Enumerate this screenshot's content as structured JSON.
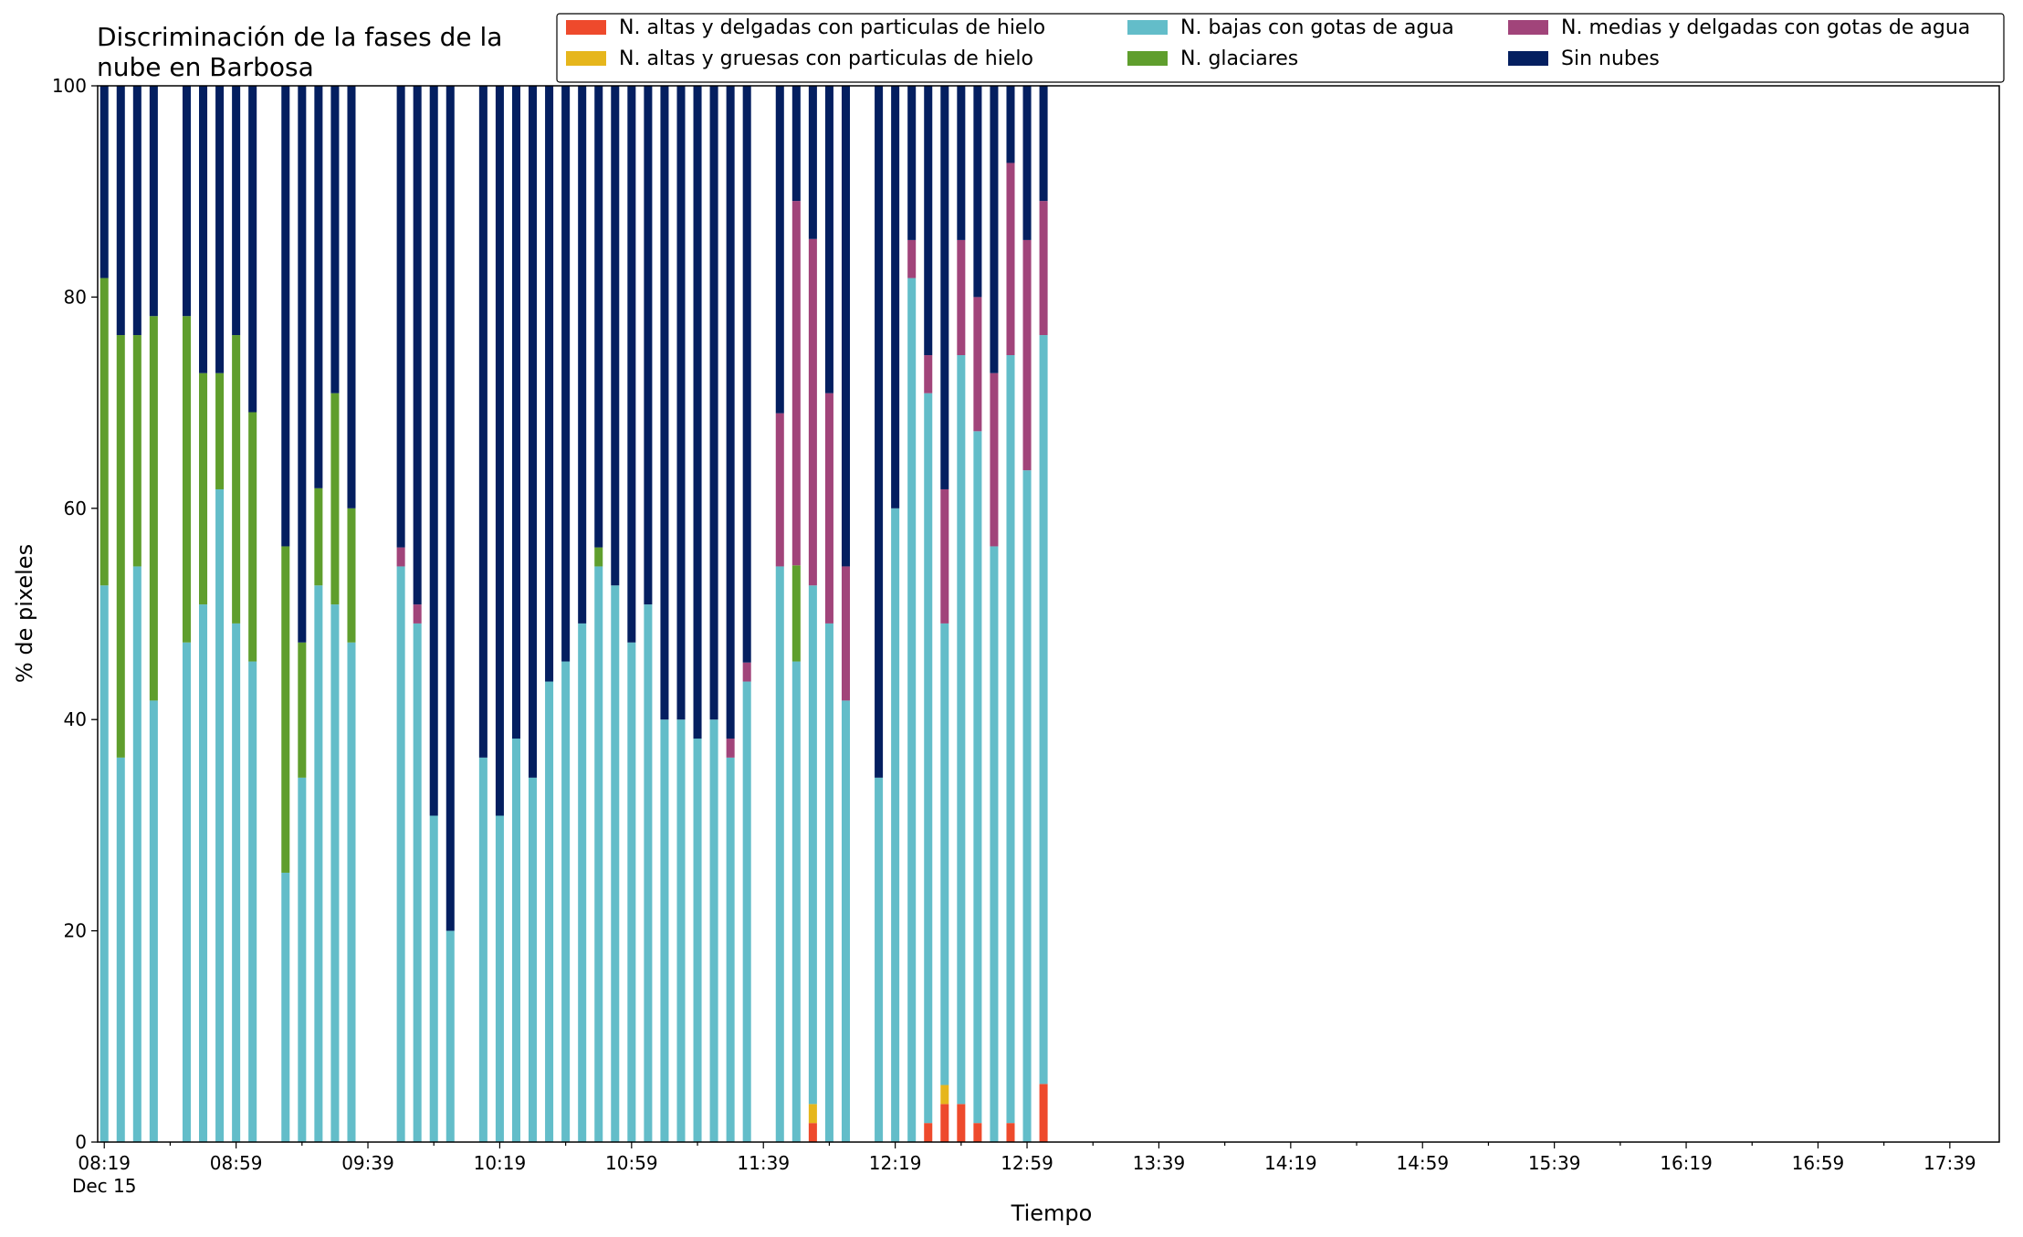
{
  "chart_data": {
    "type": "bar",
    "stacked": true,
    "title_lines": [
      "Discriminación de la fases de la",
      "nube en Barbosa"
    ],
    "xlabel": "Tiempo",
    "ylabel": "% de pixeles",
    "ylim": [
      0,
      100
    ],
    "yticks": [
      0,
      20,
      40,
      60,
      80,
      100
    ],
    "x_step_minutes": 5,
    "x_tick_labels": [
      "08:19",
      "08:59",
      "09:39",
      "10:19",
      "10:59",
      "11:39",
      "12:19",
      "12:59",
      "13:39",
      "14:19",
      "14:59",
      "15:39",
      "16:19",
      "16:59",
      "17:39"
    ],
    "x_date_label": "Dec 15",
    "x_range": [
      "08:17",
      "17:54"
    ],
    "legend_position": "top-right",
    "legend_columns": 3,
    "series": [
      {
        "name": "N. altas y delgadas con particulas de hielo",
        "color": "#ee4a2c"
      },
      {
        "name": "N. altas y gruesas con particulas de hielo",
        "color": "#e6b61c"
      },
      {
        "name": "N. bajas con gotas de agua",
        "color": "#63bdc9"
      },
      {
        "name": "N. glaciares",
        "color": "#5f9e2d"
      },
      {
        "name": "N. medias y delgadas con gotas de agua",
        "color": "#a1447a"
      },
      {
        "name": "Sin nubes",
        "color": "#041f60"
      }
    ],
    "bars": [
      {
        "time": "08:19",
        "values": [
          0,
          0,
          52.7,
          29.1,
          0,
          18.2
        ]
      },
      {
        "time": "08:24",
        "values": [
          0,
          0,
          36.4,
          40.0,
          0,
          23.6
        ]
      },
      {
        "time": "08:29",
        "values": [
          0,
          0,
          54.5,
          21.9,
          0,
          23.6
        ]
      },
      {
        "time": "08:34",
        "values": [
          0,
          0,
          41.8,
          36.4,
          0,
          21.8
        ]
      },
      {
        "time": "08:44",
        "values": [
          0,
          0,
          47.3,
          30.9,
          0,
          21.8
        ]
      },
      {
        "time": "08:49",
        "values": [
          0,
          0,
          50.9,
          21.9,
          0,
          27.2
        ]
      },
      {
        "time": "08:54",
        "values": [
          0,
          0,
          61.8,
          11.0,
          0,
          27.2
        ]
      },
      {
        "time": "08:59",
        "values": [
          0,
          0,
          49.1,
          27.3,
          0,
          23.6
        ]
      },
      {
        "time": "09:04",
        "values": [
          0,
          0,
          45.5,
          23.6,
          0,
          30.9
        ]
      },
      {
        "time": "09:14",
        "values": [
          0,
          0,
          25.5,
          30.9,
          0,
          43.6
        ]
      },
      {
        "time": "09:19",
        "values": [
          0,
          0,
          34.5,
          12.8,
          0,
          52.7
        ]
      },
      {
        "time": "09:24",
        "values": [
          0,
          0,
          52.7,
          9.2,
          0,
          38.1
        ]
      },
      {
        "time": "09:29",
        "values": [
          0,
          0,
          50.9,
          20.0,
          0,
          29.1
        ]
      },
      {
        "time": "09:34",
        "values": [
          0,
          0,
          47.3,
          12.7,
          0,
          40.0
        ]
      },
      {
        "time": "09:49",
        "values": [
          0,
          0,
          54.5,
          0,
          1.8,
          43.7
        ]
      },
      {
        "time": "09:54",
        "values": [
          0,
          0,
          49.1,
          0,
          1.8,
          49.1
        ]
      },
      {
        "time": "09:59",
        "values": [
          0,
          0,
          30.9,
          0,
          0,
          69.1
        ]
      },
      {
        "time": "10:04",
        "values": [
          0,
          0,
          20.0,
          0,
          0,
          80.0
        ]
      },
      {
        "time": "10:14",
        "values": [
          0,
          0,
          36.4,
          0,
          0,
          63.6
        ]
      },
      {
        "time": "10:19",
        "values": [
          0,
          0,
          30.9,
          0,
          0,
          69.1
        ]
      },
      {
        "time": "10:24",
        "values": [
          0,
          0,
          38.2,
          0,
          0,
          61.8
        ]
      },
      {
        "time": "10:29",
        "values": [
          0,
          0,
          34.5,
          0,
          0,
          65.5
        ]
      },
      {
        "time": "10:34",
        "values": [
          0,
          0,
          43.6,
          0,
          0,
          56.4
        ]
      },
      {
        "time": "10:39",
        "values": [
          0,
          0,
          45.5,
          0,
          0,
          54.5
        ]
      },
      {
        "time": "10:44",
        "values": [
          0,
          0,
          49.1,
          0,
          0,
          50.9
        ]
      },
      {
        "time": "10:49",
        "values": [
          0,
          0,
          54.5,
          1.8,
          0,
          43.7
        ]
      },
      {
        "time": "10:54",
        "values": [
          0,
          0,
          52.7,
          0,
          0,
          47.3
        ]
      },
      {
        "time": "10:59",
        "values": [
          0,
          0,
          47.3,
          0,
          0,
          52.7
        ]
      },
      {
        "time": "11:04",
        "values": [
          0,
          0,
          50.9,
          0,
          0,
          49.1
        ]
      },
      {
        "time": "11:09",
        "values": [
          0,
          0,
          40.0,
          0,
          0,
          60.0
        ]
      },
      {
        "time": "11:14",
        "values": [
          0,
          0,
          40.0,
          0,
          0,
          60.0
        ]
      },
      {
        "time": "11:19",
        "values": [
          0,
          0,
          38.2,
          0,
          0,
          61.8
        ]
      },
      {
        "time": "11:24",
        "values": [
          0,
          0,
          40.0,
          0,
          0,
          60.0
        ]
      },
      {
        "time": "11:29",
        "values": [
          0,
          0,
          36.4,
          0,
          1.8,
          61.8
        ]
      },
      {
        "time": "11:34",
        "values": [
          0,
          0,
          43.6,
          0,
          1.8,
          54.6
        ]
      },
      {
        "time": "11:44",
        "values": [
          0,
          0,
          54.5,
          0,
          14.5,
          31.0
        ]
      },
      {
        "time": "11:49",
        "values": [
          0,
          0,
          45.5,
          9.1,
          34.5,
          10.9
        ]
      },
      {
        "time": "11:54",
        "values": [
          1.8,
          1.8,
          49.1,
          0,
          32.8,
          14.5
        ]
      },
      {
        "time": "11:59",
        "values": [
          0,
          0,
          49.1,
          0,
          21.8,
          29.1
        ]
      },
      {
        "time": "12:04",
        "values": [
          0,
          0,
          41.8,
          0,
          12.7,
          45.5
        ]
      },
      {
        "time": "12:14",
        "values": [
          0,
          0,
          34.5,
          0,
          0,
          65.5
        ]
      },
      {
        "time": "12:19",
        "values": [
          0,
          0,
          60.0,
          0,
          0,
          40.0
        ]
      },
      {
        "time": "12:24",
        "values": [
          0,
          0,
          81.8,
          0,
          3.6,
          14.6
        ]
      },
      {
        "time": "12:29",
        "values": [
          1.8,
          0,
          69.1,
          0,
          3.6,
          25.5
        ]
      },
      {
        "time": "12:34",
        "values": [
          3.6,
          1.8,
          43.7,
          0,
          12.7,
          38.2
        ]
      },
      {
        "time": "12:39",
        "values": [
          3.6,
          0,
          70.9,
          0,
          10.9,
          14.6
        ]
      },
      {
        "time": "12:44",
        "values": [
          1.8,
          0,
          65.5,
          0,
          12.7,
          20.0
        ]
      },
      {
        "time": "12:49",
        "values": [
          0,
          0,
          56.4,
          0,
          16.4,
          27.2
        ]
      },
      {
        "time": "12:54",
        "values": [
          1.8,
          0,
          72.7,
          0,
          18.2,
          7.3
        ]
      },
      {
        "time": "12:59",
        "values": [
          0,
          0,
          63.6,
          0,
          21.8,
          14.6
        ]
      },
      {
        "time": "13:04",
        "values": [
          5.5,
          0,
          70.9,
          0,
          12.7,
          10.9
        ]
      }
    ]
  }
}
